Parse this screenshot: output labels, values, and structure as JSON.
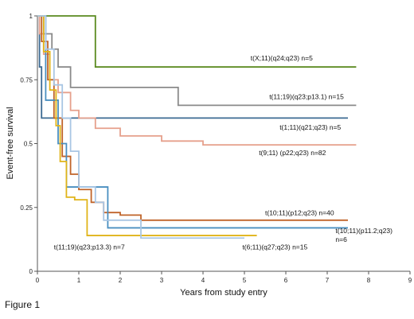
{
  "figure_caption": "Figure 1",
  "chart_data": {
    "type": "line",
    "xlabel": "Years from study entry",
    "ylabel": "Event-free survival",
    "xlim": [
      0,
      9
    ],
    "ylim": [
      0,
      1
    ],
    "x_ticks": [
      "0",
      "1",
      "2",
      "3",
      "4",
      "5",
      "6",
      "7",
      "8",
      "9"
    ],
    "y_ticks": [
      {
        "value": 0,
        "label": "0"
      },
      {
        "value": 0.25,
        "label": "0.25"
      },
      {
        "value": 0.5,
        "label": "0.5"
      },
      {
        "value": 0.75,
        "label": "0.75"
      },
      {
        "value": 1,
        "label": "1"
      }
    ],
    "grid": false,
    "series": [
      {
        "name": "t(X;11)(q24;q23) n=5",
        "color": "#5a8a1f",
        "points": [
          [
            0,
            1
          ],
          [
            1.4,
            1
          ],
          [
            1.4,
            0.8
          ],
          [
            7.7,
            0.8
          ]
        ],
        "label_at": [
          5.15,
          0.825
        ]
      },
      {
        "name": "t(11;19)(q23;p13.1) n=15",
        "color": "#8a8a8a",
        "points": [
          [
            0,
            1
          ],
          [
            0.15,
            0.93
          ],
          [
            0.35,
            0.87
          ],
          [
            0.5,
            0.8
          ],
          [
            0.8,
            0.72
          ],
          [
            2.0,
            0.72
          ],
          [
            3.4,
            0.72
          ],
          [
            3.4,
            0.65
          ],
          [
            7.7,
            0.65
          ]
        ],
        "label_at": [
          5.6,
          0.675
        ]
      },
      {
        "name": "t(1;11)(q21;q23) n=5",
        "color": "#3d6b93",
        "points": [
          [
            0,
            1
          ],
          [
            0.05,
            0.8
          ],
          [
            0.1,
            0.6
          ],
          [
            7.5,
            0.6
          ]
        ],
        "label_at": [
          5.85,
          0.555
        ]
      },
      {
        "name": "t(9;11) (p22;q23) n=82",
        "color": "#e6a08c",
        "points": [
          [
            0,
            1
          ],
          [
            0.05,
            0.93
          ],
          [
            0.15,
            0.85
          ],
          [
            0.3,
            0.75
          ],
          [
            0.5,
            0.7
          ],
          [
            0.8,
            0.63
          ],
          [
            1.0,
            0.6
          ],
          [
            1.4,
            0.56
          ],
          [
            2.0,
            0.53
          ],
          [
            3.0,
            0.51
          ],
          [
            4.0,
            0.495
          ],
          [
            7.7,
            0.495
          ]
        ],
        "label_at": [
          5.35,
          0.455
        ]
      },
      {
        "name": "t(10;11)(p12;q23) n=40",
        "color": "#c0642a",
        "points": [
          [
            0,
            1
          ],
          [
            0.1,
            0.9
          ],
          [
            0.25,
            0.75
          ],
          [
            0.4,
            0.6
          ],
          [
            0.6,
            0.45
          ],
          [
            0.8,
            0.38
          ],
          [
            1.0,
            0.32
          ],
          [
            1.3,
            0.27
          ],
          [
            1.6,
            0.23
          ],
          [
            2.0,
            0.22
          ],
          [
            2.5,
            0.2
          ],
          [
            7.5,
            0.2
          ]
        ],
        "label_at": [
          5.5,
          0.22
        ]
      },
      {
        "name": "t(10;11)(p11.2;q23)",
        "color": "#4a8fc0",
        "points": [
          [
            0,
            1
          ],
          [
            0.2,
            0.67
          ],
          [
            0.5,
            0.5
          ],
          [
            0.7,
            0.33
          ],
          [
            1.7,
            0.33
          ],
          [
            1.7,
            0.17
          ],
          [
            7.5,
            0.17
          ]
        ],
        "label_at": [
          7.2,
          0.15
        ]
      },
      {
        "name": "n=6",
        "color": "#4a8fc0",
        "points": [],
        "label_at": [
          7.2,
          0.115
        ]
      },
      {
        "name": "t(11;19)(q23;p13.3) n=7",
        "color": "#e0b419",
        "points": [
          [
            0,
            1
          ],
          [
            0.15,
            0.86
          ],
          [
            0.3,
            0.71
          ],
          [
            0.45,
            0.57
          ],
          [
            0.55,
            0.43
          ],
          [
            0.7,
            0.29
          ],
          [
            0.9,
            0.28
          ],
          [
            1.2,
            0.14
          ],
          [
            5.3,
            0.14
          ]
        ],
        "label_at": [
          0.4,
          0.085
        ]
      },
      {
        "name": "t(6;11)(q27;q23) n=15",
        "color": "#a9c6e4",
        "points": [
          [
            0,
            1
          ],
          [
            0.2,
            0.87
          ],
          [
            0.4,
            0.73
          ],
          [
            0.6,
            0.6
          ],
          [
            0.8,
            0.47
          ],
          [
            1.0,
            0.33
          ],
          [
            1.4,
            0.27
          ],
          [
            1.6,
            0.2
          ],
          [
            2.5,
            0.2
          ],
          [
            2.5,
            0.13
          ],
          [
            5.0,
            0.13
          ]
        ],
        "label_at": [
          4.95,
          0.085
        ]
      }
    ]
  }
}
